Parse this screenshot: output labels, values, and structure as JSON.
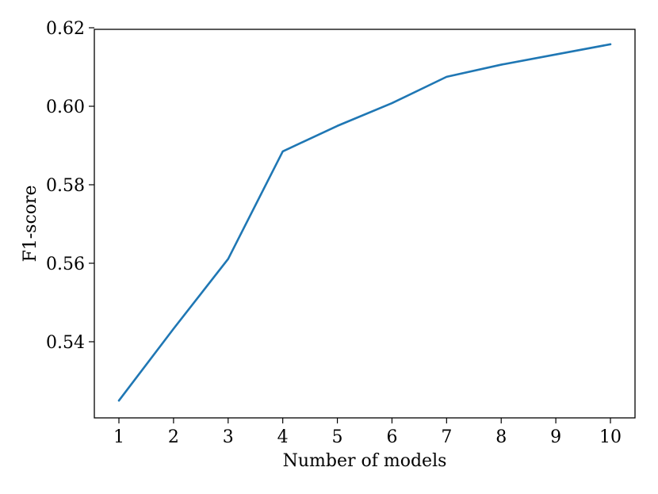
{
  "chart_data": {
    "type": "line",
    "xlabel": "Number of models",
    "ylabel": "F1-score",
    "xlim": [
      0.55,
      10.45
    ],
    "ylim": [
      0.5206,
      0.6196
    ],
    "x_ticks": [
      1,
      2,
      3,
      4,
      5,
      6,
      7,
      8,
      9,
      10
    ],
    "y_ticks": [
      0.54,
      0.56,
      0.58,
      0.6,
      0.62
    ],
    "y_tick_labels": [
      "0.54",
      "0.56",
      "0.58",
      "0.60",
      "0.62"
    ],
    "grid": false,
    "series": [
      {
        "color": "#1f77b4",
        "x": [
          1,
          2,
          3,
          4,
          5,
          6,
          7,
          8,
          9,
          10
        ],
        "values": [
          0.525,
          0.5433,
          0.5611,
          0.5885,
          0.595,
          0.6008,
          0.6075,
          0.6106,
          0.6132,
          0.6158
        ]
      }
    ]
  }
}
